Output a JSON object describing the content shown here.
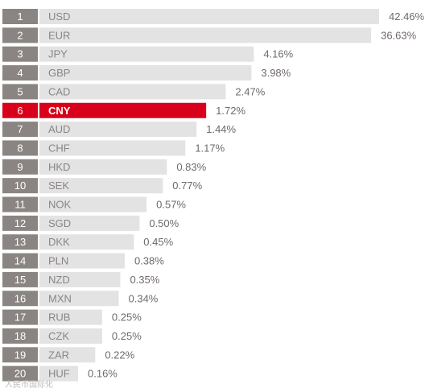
{
  "chart_data": {
    "type": "bar",
    "orientation": "horizontal",
    "ranks": [
      1,
      2,
      3,
      4,
      5,
      6,
      7,
      8,
      9,
      10,
      11,
      12,
      13,
      14,
      15,
      16,
      17,
      18,
      19,
      20
    ],
    "categories": [
      "USD",
      "EUR",
      "JPY",
      "GBP",
      "CAD",
      "CNY",
      "AUD",
      "CHF",
      "HKD",
      "SEK",
      "NOK",
      "SGD",
      "DKK",
      "PLN",
      "NZD",
      "MXN",
      "RUB",
      "CZK",
      "ZAR",
      "HUF"
    ],
    "values": [
      42.46,
      36.63,
      4.16,
      3.98,
      2.47,
      1.72,
      1.44,
      1.17,
      0.83,
      0.77,
      0.57,
      0.5,
      0.45,
      0.38,
      0.35,
      0.34,
      0.25,
      0.25,
      0.22,
      0.16
    ],
    "value_labels": [
      "42.46%",
      "36.63%",
      "4.16%",
      "3.98%",
      "2.47%",
      "1.72%",
      "1.44%",
      "1.17%",
      "0.83%",
      "0.77%",
      "0.57%",
      "0.50%",
      "0.45%",
      "0.38%",
      "0.35%",
      "0.34%",
      "0.25%",
      "0.25%",
      "0.22%",
      "0.16%"
    ],
    "highlighted_category": "CNY",
    "title": "",
    "xlabel": "",
    "ylabel": "",
    "grid": false,
    "legend": "none"
  },
  "watermark_text": "人民币国际化",
  "colors": {
    "rank_box": "#8a8583",
    "bar": "#e3e3e3",
    "highlight": "#d9001b",
    "code_text": "#8a8583",
    "value_text": "#6f6a68"
  }
}
